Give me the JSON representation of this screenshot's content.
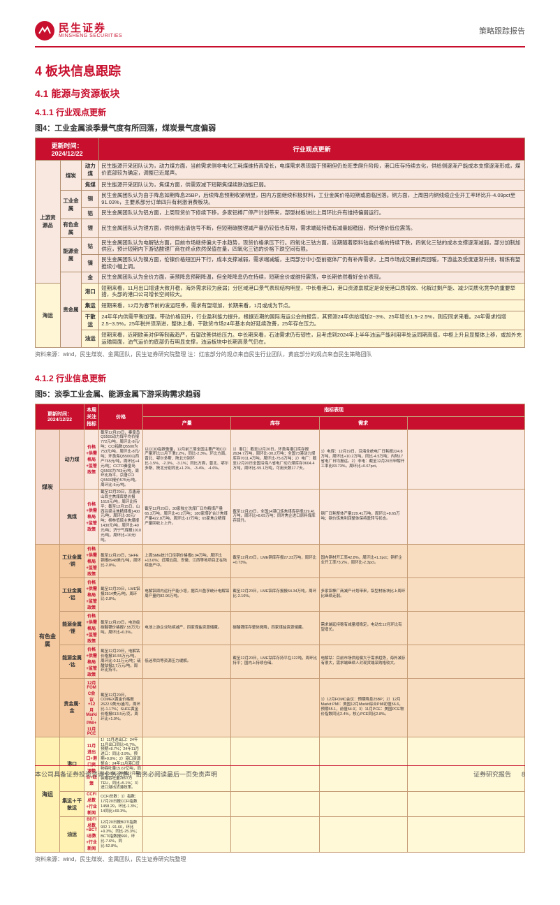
{
  "header": {
    "logo_cn": "民生证券",
    "logo_en": "MINSHENG SECURITIES",
    "right": "策略跟踪报告"
  },
  "sections": {
    "h1": "4 板块信息跟踪",
    "h2": "4.1 能源与资源板块",
    "h3a": "4.1.1 行业观点更新",
    "fig4_title": "图4：工业金属淡季景气度有所回落，煤炭景气度偏弱",
    "fig4_src": "资料来源：wind，民生煤炭、金属团队，民生证券研究院整理  注：红底部分的观点来自民生行业团队，黄底部分的观点来自民生策略团队",
    "h3b": "4.1.2 行业信息更新",
    "fig5_title": "图5：淡季工业金属、能源金属下游采购需求趋弱",
    "fig5_src": "资料来源：wind，民生煤炭、金属团队，民生证券研究院整理"
  },
  "table4": {
    "update_label": "更新时间：2024/12/22",
    "header_right": "行业观点更新",
    "colors": {
      "header_bg": "#c8102e",
      "pink": "#f8e8e0",
      "yellow": "#fff6d6",
      "border": "#b08c6c"
    },
    "rows": [
      {
        "bg": "pink",
        "cat": "上游资源品",
        "sub": "煤炭",
        "kw": "动力煤",
        "desc": "民生能源开采团队认为，动力煤方面，当前需求侧非电化工耗煤维持高增长，电煤需求表现弱于预期但仍处旺季爬升阶段，港口库存持续去化，供给侧逐渐产能成本支撑逐渐形成，煤价底部较为确定，调整已近尾声。"
      },
      {
        "bg": "pink",
        "cat": "",
        "sub": "",
        "kw": "焦煤",
        "desc": "民生能源开采团队认为，焦煤方面，供需双减下短期焦煤续跌动能已弱。"
      },
      {
        "bg": "pink",
        "cat": "",
        "sub": "工业金属",
        "kw": "铜",
        "desc": "民生金属团队认为由于降息如期降息25BP，后续降息预期收紧明显，国内方面继续积极财料，工业金属价格短期或面临回落。铜方面，上周国内铜线缆企业开工率环比升-4.09pct至91.03%，主要系部分订单四升有刺激消费板块。"
      },
      {
        "bg": "pink",
        "cat": "",
        "sub": "",
        "kw": "铝",
        "desc": "民生金属团队认为铝方面，上周现货价下修续下移，多家铝棒厂停产计划带来，部型材板块比上周环比升有维持偏弱运行。"
      },
      {
        "bg": "pink",
        "cat": "",
        "sub": "有色金属",
        "kw": "锂",
        "desc": "民生金属团队认为锂方面，供给侧出清信号不断，但短期碳酸锂减产量仍较低也有限，需求端延持稳有减量超稳固，预计锂价低位震荡。"
      },
      {
        "bg": "pink",
        "cat": "",
        "sub": "能源金属",
        "kw": "钴",
        "desc": "民生金属团队认为电解钴方面，目前市场继持偏大于本趋势，现货价格承压下行。四氧化三钴方面，近期随着原料钴盐价格的持续下跌，四氧化三钴的成本支撑逐渐减弱，部分加制加供应，预计短期内下游钴酸锂厂商在终点依然保值在量，四氧化三钴的价格下跌空间有限。"
      },
      {
        "bg": "pink",
        "cat": "",
        "sub": "",
        "kw": "镍",
        "desc": "民生金属团队认为镍方面，伦镍价格短回升下行，成本支撑减弱，需求端减缓，主周部分中小型前驱体厂仍有补库需求，上周市场成交量前周回暖，下游盐及受度逐渐升接，精炼有望推续小幅上调。"
      },
      {
        "bg": "pink",
        "cat": "",
        "sub": "贵金属",
        "kw": "金",
        "desc": "民生金属团队认为金价方面，美预降息预期降温，但金降降息仍在持续，短期金价或维持震荡，中长期依然看好金价表现。"
      },
      {
        "bg": "yellow",
        "cat": "海运",
        "sub": "",
        "kw": "港口",
        "desc": "短期来看，11月出口增速大致开稳，海外需求较为疲弱；分区域港口景气表现结构明显，中长看港口，港口资源禀赋定是促使港口质增效、化解过剩产能、减少同质化竞争的重要举措，头部的港口公司增长空间较大。"
      },
      {
        "bg": "yellow",
        "cat": "",
        "sub": "",
        "kw": "集运",
        "desc": "短期来看，12月为春节前的发运旺季，需求有望增加，长期来看，1月或成为节点。"
      },
      {
        "bg": "yellow",
        "cat": "",
        "sub": "",
        "kw": "干散运",
        "desc": "24年年内供需平衡加强，带动价格回升，行业盈利能力提升。根据近期的国际海运公会的报告，其预测24年供给增加2~3%、25年增长1.5~2.5%，则应同求来看。24年需求档增2.5~3.5%，25年税并须渐进，整体上看，干散货市场24年基本向好延续改善，25年存在压力。"
      },
      {
        "bg": "yellow",
        "cat": "",
        "sub": "",
        "kw": "油运",
        "desc": "短期来看，近期欧美对伊等制裁趋严，有望改善供给压力。中长期来看，石油需求仍有韧性，且考虑到2024年上半年油运产能利用率处运同期高值，中枢上升且显整体上移，或加外充运输局面，油气运价的底部仍有明显支撑，油运板块中长期高景气仍在。"
      }
    ]
  },
  "table5": {
    "update_label": "更新时间：2024/12/22",
    "headers": [
      "本周关注指标",
      "价格",
      "产量",
      "指标表现",
      "库存",
      "需求"
    ],
    "col_widths": [
      "5%",
      "5%",
      "3%",
      "9%",
      "18%",
      "18%",
      "18%",
      "24%"
    ],
    "groups": [
      {
        "cat": "煤炭",
        "bg": "pink",
        "rows": [
          {
            "sub": "动力煤",
            "kw": "价格+供需格局+监管政策",
            "cells": [
              "截至12月20日，秦皇岛Q5500动力煤平均价报772元/吨，周环比-8元/吨；CCI指数Q5500为753元/吨，周环比-8元/吨；环渤海Q5500山西产765元/吨，周环比+4元/吨；CCTD秦皇岛Q5500为703元/吨，周环比持平，京唐CCI Q5500报价575元/吨，周环比-5元/吨。",
              "以CCID指数衡量，12月前三周全国主要产地CCI产量环比11月下滑2.2%，同比-2.3%。环比方面，晋北、鄂尔多斯、陕北分别环比-1.5%、-2.3%、-3.1%；同比方面，晋北、鄂尔多斯、陕北分别同比+1.2%、-3.4%、-4.6%。",
              "1）港口：截至12月20日，环渤海港口库存报2634.7万吨，周环比-30.2万吨；全国73港动力煤库存7011.4万吨，周环比-75.6万吨；2）电厂：截至12月20日全国沿海八省电厂动力煤库存3604.4万吨，周环比-55.1万吨，可用天数17.7天。",
              "1）电煤：12月19日，沿海全统电厂日耗报224.8万吨，周环比+10.2万吨，同比-4.5万吨；内陆17省电厂日均报运。2）非电：截至12月20日甲醇开工率比83.73%，周环比+0.67pct。"
            ]
          },
          {
            "sub": "焦煤",
            "kw": "价格+供需格局+监管政策",
            "cells": [
              "截至12月20日，京唐港山西主焦煤库提价报1610元/吨，周环比持平；截至12月15日，山西吕梁主焦精煤报1400元/吨，周环比-30元/吨；柳林低硫主焦煤报1430元/吨，周环比-40元/吨；济宁气煤报1010元/吨，周环比+10元/吨。",
              "截至12月20日，30家独立洗煤厂日均精煤产量65.3万吨，周环比+0.2万吨；180家煤矿合计焦煤产量422.8万吨，周环比-17万吨；65家焦企精煤产量回收上上升。",
              "截至12月20日，全国14港口炼焦煤库存报229.41万吨，周环比+8.65万吨；同时焦企进口原料煤库存回升。",
              "钢厂日耗整体产量229.41万吨，周环比+8.65万吨；钢价炼焦利润整体保持盈转亏状态。"
            ]
          }
        ]
      },
      {
        "cat": "有色金属",
        "bg": "orange",
        "rows": [
          {
            "sub": "工业金属·铜",
            "kw": "价格+供需格局+监管政策",
            "cells": [
              "截至12月20日，SHFE铜报8948美元/吨，周环比-2.8%。",
              "上周SME统计口径铜价格报8.04万吨，周环比+13.6%；近期云南、安徽、江西等地项目正在陆续投产中。",
              "截至12月20日，LME铜库存报27.23万吨，周环比+0.73%。",
              "国内铜材开工率42.8%，周环比+1.2pct；铜杆企业开工率73.2%，周环比-2.3pct。"
            ]
          },
          {
            "sub": "工业金属·铝",
            "kw": "价格+供需格局+监管政策",
            "cells": [
              "截至12月20日，LME铝报2514美元/吨，周环比-2.8%。",
              "电解铝周内运行产能小增，据百川盈孚统计电解铝周产量约82.96万吨。",
              "截至12月20日，LME铝库存报报64.34万吨，周环比-2.16%。",
              "多家铝棒厂商减产计划带来，铝型材板块比上周环比继续走弱。"
            ]
          },
          {
            "sub": "能源金属·锂",
            "kw": "价格+供需格局+监管政策",
            "cells": [
              "截至12月20日，电池级碳酸锂价格报7.55万元/吨，周环比+0.3%。",
              "电池上游企业陆续减产，四家煤盐资源储藏。",
              "碳酸锂库存整体微降，四家煤盐资源储藏。",
              "需求端延持稳有减量增稳定，电动车12月环比有望增长。"
            ]
          },
          {
            "sub": "能源金属·钴",
            "kw": "价格+供需格局+监管政策",
            "cells": [
              "截至12月20日，电解钴价格报16.55万元/吨，周环比-0.11万元/吨；硫酸钴报2.7万元/吨，周环比持平。",
              "低迷项目等资源压力缓解。",
              "截至12月20日，LME钴库存持平在122吨，周环比持平；国内上持续仓储。",
              "电解钴：目前市场供给偏大于需求趋势，海外减存有很大，需求端继续人对现货端采购格较大。"
            ]
          },
          {
            "sub": "贵金属·金",
            "kw": "12月FOMC会议+12月Markit PMI+11月PCE",
            "cells": [
              "截至12月20日，COMEX黄金价格报2622.9美元/盎司，周环比-1.17%；SHFE黄金价格报613.5元/克，周环比+1.0%。",
              "",
              "",
              "1）12月FOMC会议：预期降息25BP；2）12月Markit PMI：美国12月Markit综合PMI初值56.6，预期55.1，前值54.9；3）11月PCE：美国PCE物价指数同比2.4%，核心PCE同比2.8%。"
            ]
          }
        ]
      },
      {
        "cat": "海运",
        "bg": "yellow",
        "rows": [
          {
            "sub": "港口",
            "kw": "11月进出口+港口资源整合+政策",
            "cells": [
              "1）11月进出口：24年11月出口同比+6.7%，预期+8.7%；24年11月进口：同比-3.9%，预期+0.9%；2）港口资源整合：24年11月港口货物吞吐量15.67亿吨，同比+2.9%；24年12月集装箱吞吐量2897万TEU，同比+5.1%；3）进口港出货港政策。",
              "",
              "",
              ""
            ]
          },
          {
            "sub": "集运＋干散运",
            "kw": "CCFI总数+行业新闻",
            "cells": [
              "CCFI总数：1）指数：17月20日报CCFI指数1458.29，环比-1.3%；14同比+69.3%。",
              "",
              "",
              ""
            ]
          },
          {
            "sub": "油运",
            "kw": "BDTI总数+BCTI总数+行业新闻",
            "cells": [
              "12月20日报BDTI指数932 1 -91.60，环比+9.3%；同比-25.3%；BCTI指数报660，环比-7.6%，同比-52.8%。",
              "",
              "",
              ""
            ]
          }
        ]
      }
    ]
  },
  "footer": {
    "left": "本公司具备证券投资咨询业务资格，请务必阅读最后一页免责声明",
    "right_a": "证券研究报告",
    "right_b": "8"
  }
}
